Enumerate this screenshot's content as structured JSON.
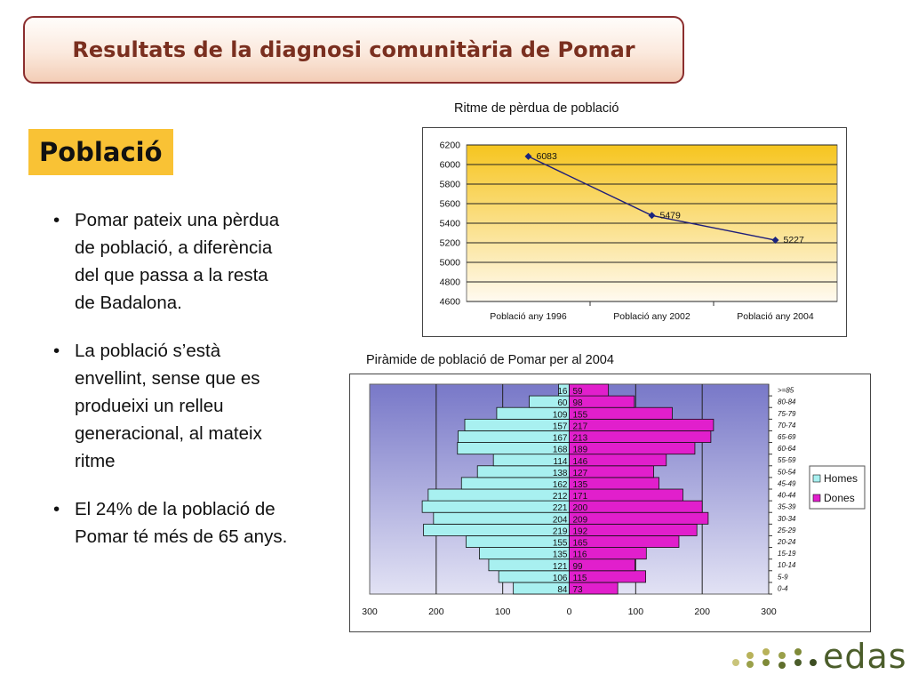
{
  "header": {
    "title": "Resultats de la diagnosi comunitària de Pomar"
  },
  "section_title": "Població",
  "bullets": [
    {
      "marker": "•",
      "text": "Pomar pateix una pèrdua de població, a diferència del que passa a la resta de Badalona."
    },
    {
      "marker": "•",
      "text": " La població s’està envellint, sense que es produeixi un relleu generacional, al mateix ritme"
    },
    {
      "marker": "•",
      "text": "El 24% de la població de Pomar té més de 65 anys."
    }
  ],
  "chart_data": [
    {
      "type": "line",
      "title": "Ritme de pèrdua de població",
      "categories": [
        "Població any 1996",
        "Població any 2002",
        "Població any 2004"
      ],
      "values": [
        6083,
        5479,
        5227
      ],
      "data_labels": [
        "6083",
        "5479",
        "5227"
      ],
      "ylim": [
        4600,
        6200
      ],
      "yticks": [
        4600,
        4800,
        5000,
        5200,
        5400,
        5600,
        5800,
        6000,
        6200
      ],
      "grid": true,
      "colors": {
        "line": "#1f1f7a",
        "marker": "#1a237e",
        "plot_top": "#f6c51f",
        "plot_bottom": "#fffaf0"
      }
    },
    {
      "type": "bar",
      "orientation": "horizontal-pyramid",
      "title": "Piràmide de població de Pomar per al 2004",
      "categories": [
        "0-4",
        "5-9",
        "10-14",
        "15-19",
        "20-24",
        "25-29",
        "30-34",
        "35-39",
        "40-44",
        "45-49",
        "50-54",
        "55-59",
        "60-64",
        "65-69",
        "70-74",
        "75-79",
        "80-84",
        ">=85"
      ],
      "series": [
        {
          "name": "Homes",
          "values": [
            84,
            106,
            121,
            135,
            155,
            219,
            204,
            221,
            212,
            162,
            138,
            114,
            168,
            167,
            157,
            109,
            60,
            16
          ],
          "color": "#a8f0f0"
        },
        {
          "name": "Dones",
          "values": [
            73,
            115,
            99,
            116,
            165,
            192,
            209,
            200,
            171,
            135,
            127,
            146,
            189,
            213,
            217,
            155,
            98,
            59
          ],
          "color": "#e11fcc"
        }
      ],
      "xlim": [
        -300,
        300
      ],
      "xtick_labels": [
        "300",
        "200",
        "100",
        "0",
        "100",
        "200",
        "300"
      ],
      "legend_position": "right",
      "grid": true,
      "colors": {
        "plot_top": "#7878c8",
        "plot_bottom": "#e2e2f4"
      }
    }
  ],
  "logo": {
    "text": "edas",
    "color": "#4b5d2a"
  }
}
